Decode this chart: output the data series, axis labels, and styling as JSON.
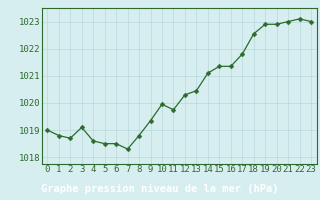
{
  "x": [
    0,
    1,
    2,
    3,
    4,
    5,
    6,
    7,
    8,
    9,
    10,
    11,
    12,
    13,
    14,
    15,
    16,
    17,
    18,
    19,
    20,
    21,
    22,
    23
  ],
  "y": [
    1019.0,
    1018.8,
    1018.7,
    1019.1,
    1018.6,
    1018.5,
    1018.5,
    1018.3,
    1018.8,
    1019.35,
    1019.95,
    1019.75,
    1020.3,
    1020.45,
    1021.1,
    1021.35,
    1021.35,
    1021.8,
    1022.55,
    1022.9,
    1022.9,
    1023.0,
    1023.1,
    1023.0
  ],
  "line_color": "#2d6a2d",
  "marker": "D",
  "marker_size": 2.5,
  "background_color": "#d6eef0",
  "grid_color": "#b8d8da",
  "xlabel": "Graphe pression niveau de la mer (hPa)",
  "xlabel_bg": "#2d6a2d",
  "xlabel_color": "#ffffff",
  "ylabel_ticks": [
    1018,
    1019,
    1020,
    1021,
    1022,
    1023
  ],
  "xlim": [
    -0.5,
    23.5
  ],
  "ylim": [
    1017.75,
    1023.5
  ],
  "tick_fontsize": 6.5,
  "label_fontsize": 7.5
}
